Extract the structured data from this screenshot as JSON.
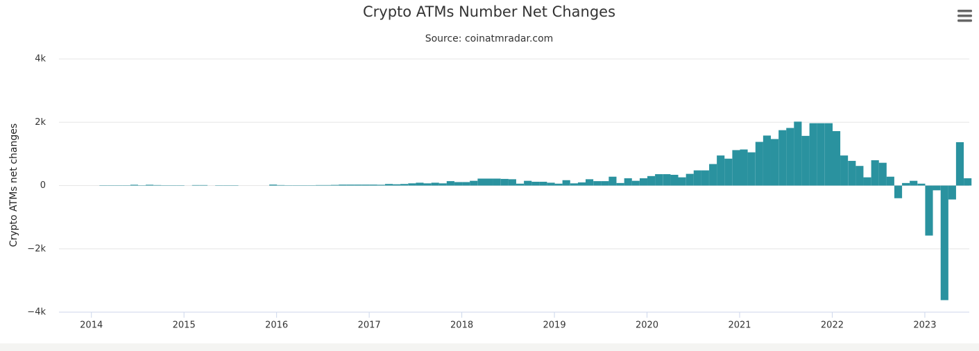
{
  "chart_data": {
    "type": "bar",
    "title": "Crypto ATMs Number Net Changes",
    "subtitle": "Source: coinatmradar.com",
    "y_label": "Crypto ATMs net changes",
    "color": "#2a929f",
    "grid": true,
    "xlim": [
      2013.65,
      2023.48
    ],
    "xticks": [
      2014,
      2015,
      2016,
      2017,
      2018,
      2019,
      2020,
      2021,
      2022,
      2023
    ],
    "ylim": [
      -4000,
      4000
    ],
    "yticks": [
      {
        "value": 4000,
        "label": "4k"
      },
      {
        "value": 2000,
        "label": "2k"
      },
      0,
      {
        "value": -2000,
        "label": "−2k"
      },
      {
        "value": -4000,
        "label": "−4k"
      }
    ],
    "x": [
      2014,
      2014.083,
      2014.167,
      2014.25,
      2014.333,
      2014.417,
      2014.5,
      2014.583,
      2014.667,
      2014.75,
      2014.833,
      2014.917,
      2015,
      2015.083,
      2015.167,
      2015.25,
      2015.333,
      2015.417,
      2015.5,
      2015.583,
      2015.667,
      2015.75,
      2015.833,
      2015.917,
      2016,
      2016.083,
      2016.167,
      2016.25,
      2016.333,
      2016.417,
      2016.5,
      2016.583,
      2016.667,
      2016.75,
      2016.833,
      2016.917,
      2017,
      2017.083,
      2017.167,
      2017.25,
      2017.333,
      2017.417,
      2017.5,
      2017.583,
      2017.667,
      2017.75,
      2017.833,
      2017.917,
      2018,
      2018.083,
      2018.167,
      2018.25,
      2018.333,
      2018.417,
      2018.5,
      2018.583,
      2018.667,
      2018.75,
      2018.833,
      2018.917,
      2019,
      2019.083,
      2019.167,
      2019.25,
      2019.333,
      2019.417,
      2019.5,
      2019.583,
      2019.667,
      2019.75,
      2019.833,
      2019.917,
      2020,
      2020.083,
      2020.167,
      2020.25,
      2020.333,
      2020.417,
      2020.5,
      2020.583,
      2020.667,
      2020.75,
      2020.833,
      2020.917,
      2021,
      2021.083,
      2021.167,
      2021.25,
      2021.333,
      2021.417,
      2021.5,
      2021.583,
      2021.667,
      2021.75,
      2021.833,
      2021.917,
      2022,
      2022.083,
      2022.167,
      2022.25,
      2022.333,
      2022.417,
      2022.5,
      2022.583,
      2022.667,
      2022.75,
      2022.833,
      2022.917,
      2023,
      2023.083,
      2023.167,
      2023.25,
      2023.333,
      2023.417
    ],
    "values": [
      null,
      10,
      10,
      10,
      10,
      25,
      10,
      25,
      15,
      10,
      10,
      10,
      null,
      15,
      15,
      null,
      10,
      10,
      10,
      null,
      null,
      null,
      null,
      30,
      15,
      10,
      10,
      10,
      10,
      15,
      15,
      20,
      30,
      30,
      30,
      30,
      30,
      25,
      50,
      40,
      50,
      70,
      90,
      70,
      90,
      70,
      140,
      110,
      110,
      150,
      220,
      220,
      220,
      210,
      200,
      60,
      150,
      120,
      120,
      90,
      60,
      170,
      70,
      100,
      200,
      140,
      140,
      280,
      80,
      230,
      150,
      230,
      300,
      360,
      360,
      340,
      260,
      370,
      480,
      480,
      680,
      950,
      850,
      1120,
      1140,
      1050,
      1380,
      1580,
      1470,
      1750,
      1820,
      2020,
      1570,
      1970,
      1970,
      1970,
      1720,
      950,
      780,
      620,
      260,
      800,
      720,
      280,
      -400,
      80,
      150,
      60,
      -1580,
      -150,
      -3620,
      -440,
      1370,
      230
    ]
  }
}
